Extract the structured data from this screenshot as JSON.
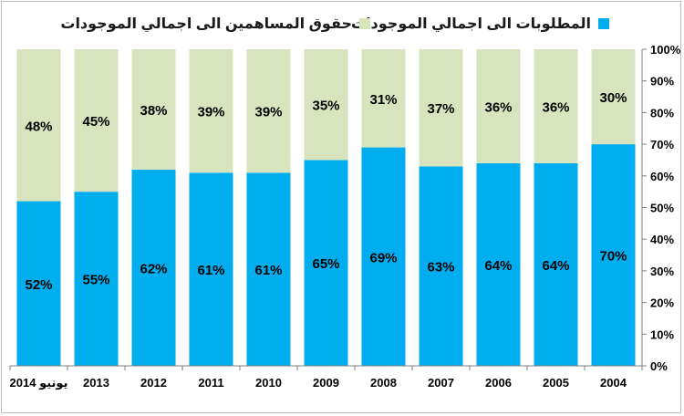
{
  "colors": {
    "liabilities": "#00aeef",
    "equity": "#d7e4bd",
    "axis": "#7f7f7f",
    "text": "#000000"
  },
  "chart_data": {
    "type": "bar",
    "stacked": true,
    "categories": [
      "2004",
      "2005",
      "2006",
      "2007",
      "2008",
      "2009",
      "2010",
      "2011",
      "2012",
      "2013",
      "يونيو 2014"
    ],
    "series": [
      {
        "name": "المطلوبات الى اجمالي الموجودات",
        "values": [
          70,
          64,
          64,
          63,
          69,
          65,
          61,
          61,
          62,
          55,
          52
        ],
        "labels": [
          "70%",
          "64%",
          "64%",
          "63%",
          "69%",
          "65%",
          "61%",
          "61%",
          "62%",
          "55%",
          "52%"
        ],
        "color": "#00aeef"
      },
      {
        "name": "حقوق المساهمين  الى اجمالي الموجودات",
        "values": [
          30,
          36,
          36,
          37,
          31,
          35,
          39,
          39,
          38,
          45,
          48
        ],
        "labels": [
          "30%",
          "36%",
          "36%",
          "37%",
          "31%",
          "35%",
          "39%",
          "39%",
          "38%",
          "45%",
          "48%"
        ],
        "color": "#d7e4bd"
      }
    ],
    "x_order": "right-to-left",
    "y_axis_position": "right",
    "ylim": [
      0,
      100
    ],
    "yticks": [
      "0%",
      "10%",
      "20%",
      "30%",
      "40%",
      "50%",
      "60%",
      "70%",
      "80%",
      "90%",
      "100%"
    ],
    "legend_position": "top",
    "grid": false
  }
}
